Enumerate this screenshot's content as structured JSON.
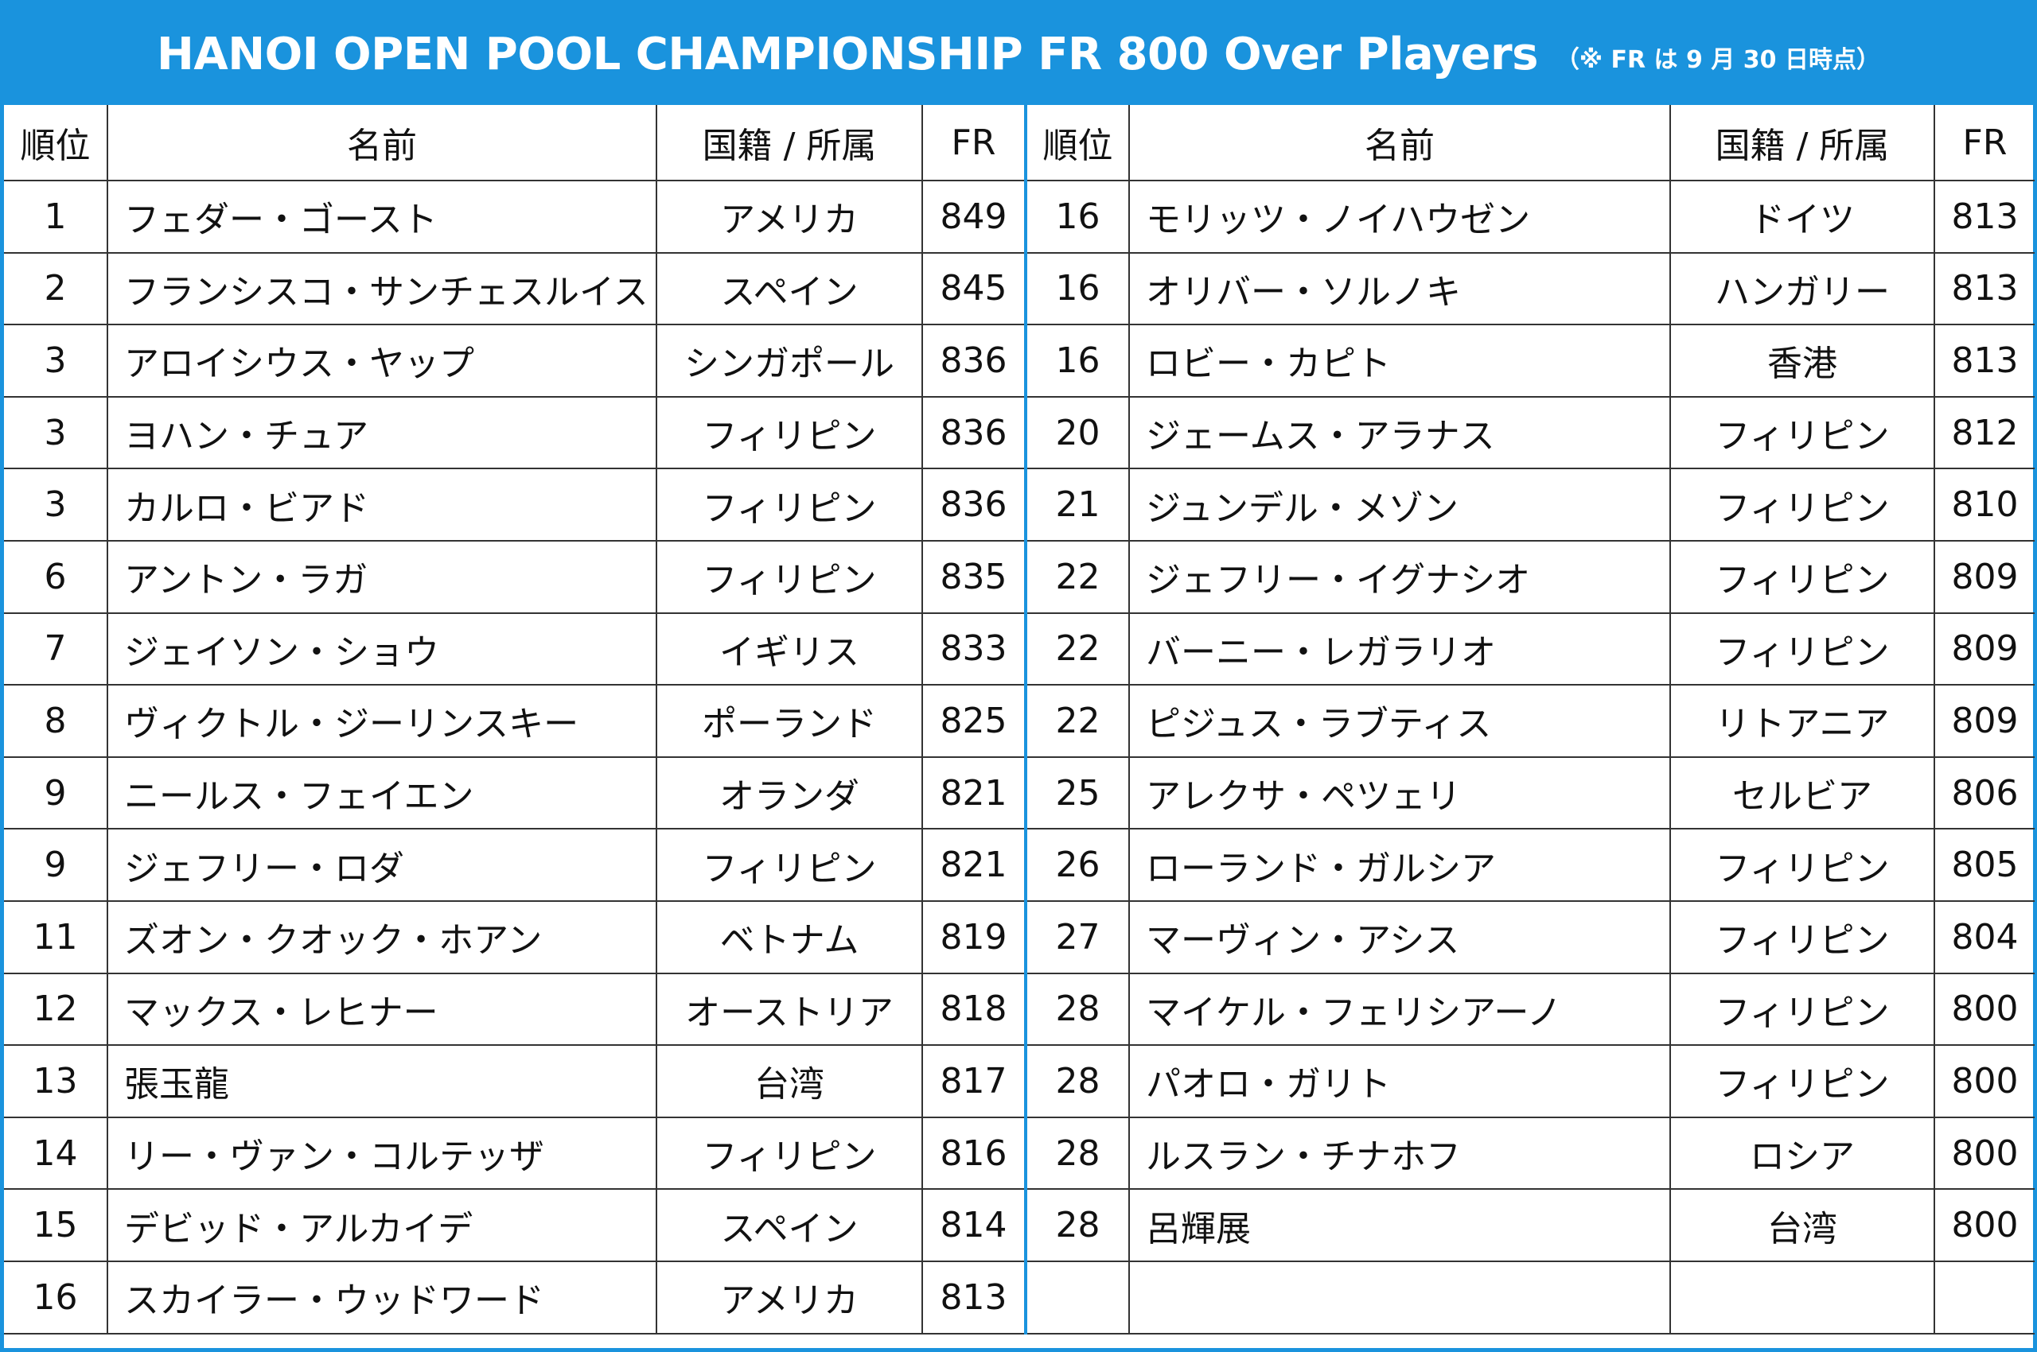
{
  "title": "HANOI OPEN POOL CHAMPIONSHIP FR 800 Over Players",
  "note": "（※ FR は 9 月 30 日時点）",
  "headers": {
    "rank": "順位",
    "name": "名前",
    "nation": "国籍 / 所属",
    "fr": "FR"
  },
  "left_rows": [
    {
      "rank": "1",
      "name": "フェダー・ゴースト",
      "nation": "アメリカ",
      "fr": "849"
    },
    {
      "rank": "2",
      "name": "フランシスコ・サンチェスルイス",
      "nation": "スペイン",
      "fr": "845"
    },
    {
      "rank": "3",
      "name": "アロイシウス・ヤップ",
      "nation": "シンガポール",
      "fr": "836"
    },
    {
      "rank": "3",
      "name": "ヨハン・チュア",
      "nation": "フィリピン",
      "fr": "836"
    },
    {
      "rank": "3",
      "name": "カルロ・ビアド",
      "nation": "フィリピン",
      "fr": "836"
    },
    {
      "rank": "6",
      "name": "アントン・ラガ",
      "nation": "フィリピン",
      "fr": "835"
    },
    {
      "rank": "7",
      "name": "ジェイソン・ショウ",
      "nation": "イギリス",
      "fr": "833"
    },
    {
      "rank": "8",
      "name": "ヴィクトル・ジーリンスキー",
      "nation": "ポーランド",
      "fr": "825"
    },
    {
      "rank": "9",
      "name": "ニールス・フェイエン",
      "nation": "オランダ",
      "fr": "821"
    },
    {
      "rank": "9",
      "name": "ジェフリー・ロダ",
      "nation": "フィリピン",
      "fr": "821"
    },
    {
      "rank": "11",
      "name": "ズオン・クオック・ホアン",
      "nation": "ベトナム",
      "fr": "819"
    },
    {
      "rank": "12",
      "name": "マックス・レヒナー",
      "nation": "オーストリア",
      "fr": "818"
    },
    {
      "rank": "13",
      "name": "張玉龍",
      "nation": "台湾",
      "fr": "817"
    },
    {
      "rank": "14",
      "name": "リー・ヴァン・コルテッザ",
      "nation": "フィリピン",
      "fr": "816"
    },
    {
      "rank": "15",
      "name": "デビッド・アルカイデ",
      "nation": "スペイン",
      "fr": "814"
    },
    {
      "rank": "16",
      "name": "スカイラー・ウッドワード",
      "nation": "アメリカ",
      "fr": "813"
    }
  ],
  "right_rows": [
    {
      "rank": "16",
      "name": "モリッツ・ノイハウゼン",
      "nation": "ドイツ",
      "fr": "813"
    },
    {
      "rank": "16",
      "name": "オリバー・ソルノキ",
      "nation": "ハンガリー",
      "fr": "813"
    },
    {
      "rank": "16",
      "name": "ロビー・カピト",
      "nation": "香港",
      "fr": "813"
    },
    {
      "rank": "20",
      "name": "ジェームス・アラナス",
      "nation": "フィリピン",
      "fr": "812"
    },
    {
      "rank": "21",
      "name": "ジュンデル・メゾン",
      "nation": "フィリピン",
      "fr": "810"
    },
    {
      "rank": "22",
      "name": "ジェフリー・イグナシオ",
      "nation": "フィリピン",
      "fr": "809"
    },
    {
      "rank": "22",
      "name": "バーニー・レガラリオ",
      "nation": "フィリピン",
      "fr": "809"
    },
    {
      "rank": "22",
      "name": "ピジュス・ラブティス",
      "nation": "リトアニア",
      "fr": "809"
    },
    {
      "rank": "25",
      "name": "アレクサ・ペツェリ",
      "nation": "セルビア",
      "fr": "806"
    },
    {
      "rank": "26",
      "name": "ローランド・ガルシア",
      "nation": "フィリピン",
      "fr": "805"
    },
    {
      "rank": "27",
      "name": "マーヴィン・アシス",
      "nation": "フィリピン",
      "fr": "804"
    },
    {
      "rank": "28",
      "name": "マイケル・フェリシアーノ",
      "nation": "フィリピン",
      "fr": "800"
    },
    {
      "rank": "28",
      "name": "パオロ・ガリト",
      "nation": "フィリピン",
      "fr": "800"
    },
    {
      "rank": "28",
      "name": "ルスラン・チナホフ",
      "nation": "ロシア",
      "fr": "800"
    },
    {
      "rank": "28",
      "name": "呂輝展",
      "nation": "台湾",
      "fr": "800"
    },
    {
      "rank": "",
      "name": "",
      "nation": "",
      "fr": ""
    }
  ],
  "colors": {
    "accent": "#1a93dd",
    "banner_text": "#ffffff",
    "grid": "#333333"
  }
}
